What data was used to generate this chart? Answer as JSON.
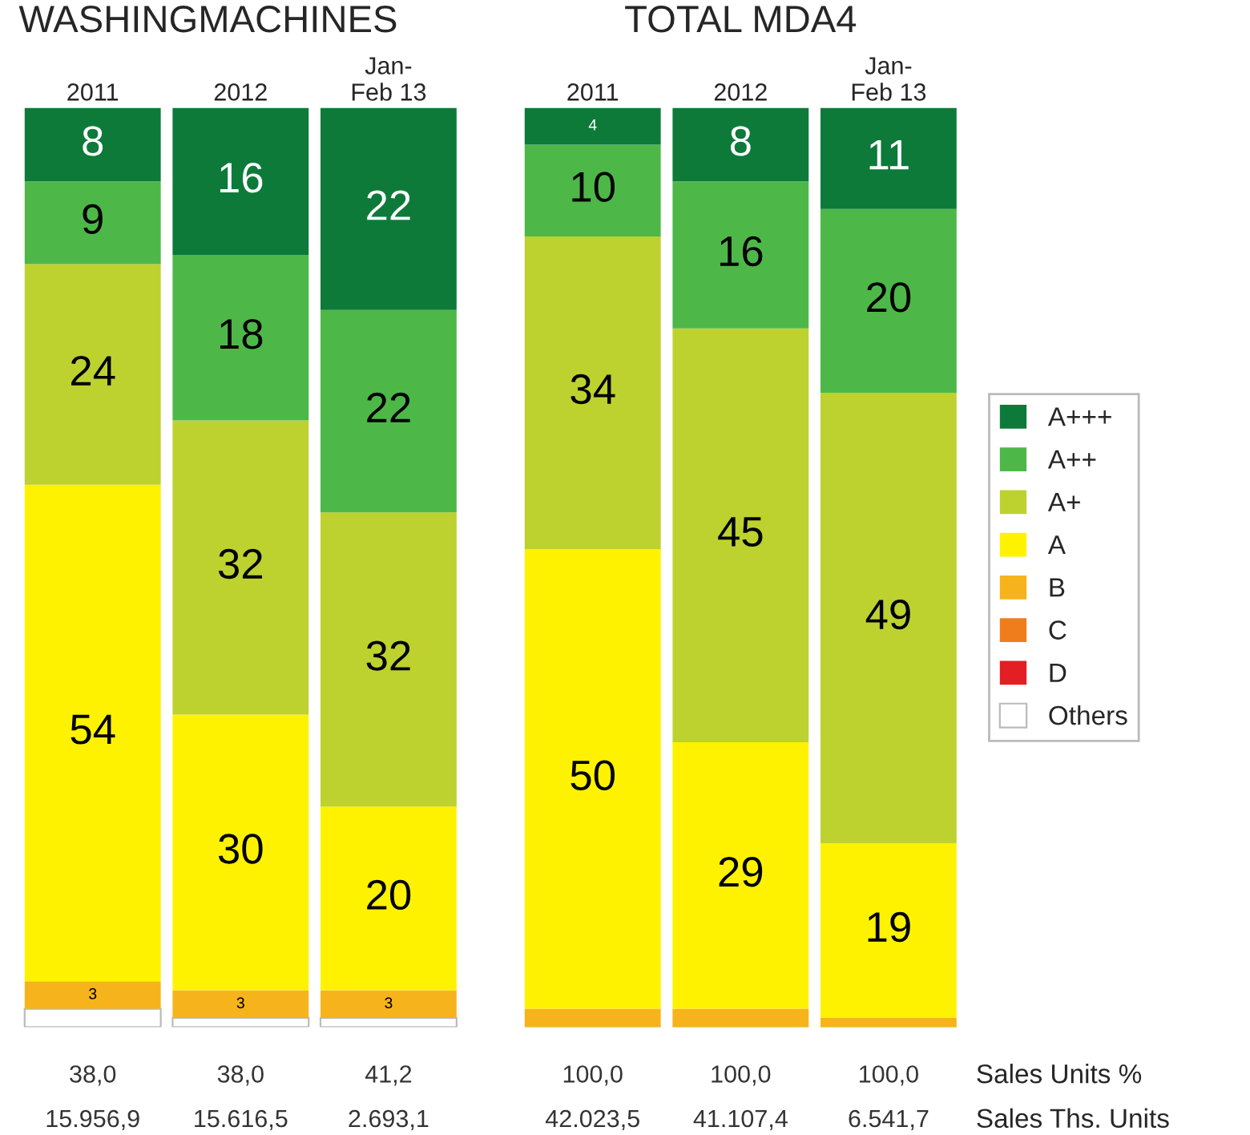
{
  "chart_data": [
    {
      "type": "bar",
      "stacked": true,
      "title": "WASHINGMACHINES",
      "categories": [
        "2011",
        "2012",
        "Jan-\nFeb 13"
      ],
      "ylim": [
        0,
        100
      ],
      "tick_labels": "x",
      "legend": false,
      "series": [
        {
          "color": "#ffffff",
          "values": [
            2,
            1,
            1
          ],
          "value_labels": [
            null,
            null,
            null
          ]
        },
        {
          "color": "#f7b31b",
          "values": [
            3,
            3,
            3
          ],
          "value_labels": [
            "3",
            "3",
            "3"
          ]
        },
        {
          "color": "#fff200",
          "values": [
            54,
            30,
            20
          ],
          "value_labels": [
            "54",
            "30",
            "20"
          ]
        },
        {
          "color": "#bdd22f",
          "values": [
            24,
            32,
            32
          ],
          "value_labels": [
            "24",
            "32",
            "32"
          ]
        },
        {
          "color": "#4db848",
          "values": [
            9,
            18,
            22
          ],
          "value_labels": [
            "9",
            "18",
            "22"
          ]
        },
        {
          "color": "#0d7a3a",
          "values": [
            8,
            16,
            22
          ],
          "value_labels": [
            "8",
            "16",
            "22"
          ]
        }
      ],
      "annotations": [
        "38,0",
        "38,0",
        "41,2",
        "15.956,9",
        "15.616,5",
        "2.693,1"
      ]
    },
    {
      "type": "bar",
      "stacked": true,
      "title": "TOTAL MDA4",
      "categories": [
        "2011",
        "2012",
        "Jan-\nFeb 13"
      ],
      "ylim": [
        0,
        100
      ],
      "tick_labels": "x",
      "legend": "right",
      "series": [
        {
          "name": "Others",
          "color": "#ffffff",
          "values": [
            0,
            0,
            0
          ],
          "value_labels": [
            null,
            null,
            null
          ]
        },
        {
          "name": "D",
          "color": "#e31e24",
          "values": [
            0,
            0,
            0
          ],
          "value_labels": [
            null,
            null,
            null
          ]
        },
        {
          "name": "C",
          "color": "#f07d1c",
          "values": [
            0,
            0,
            0
          ],
          "value_labels": [
            null,
            null,
            null
          ]
        },
        {
          "name": "B",
          "color": "#f7b31b",
          "values": [
            2,
            2,
            1
          ],
          "value_labels": [
            null,
            null,
            null
          ]
        },
        {
          "name": "A",
          "color": "#fff200",
          "values": [
            50,
            29,
            19
          ],
          "value_labels": [
            "50",
            "29",
            "19"
          ]
        },
        {
          "name": "A+",
          "color": "#bdd22f",
          "values": [
            34,
            45,
            49
          ],
          "value_labels": [
            "34",
            "45",
            "49"
          ]
        },
        {
          "name": "A++",
          "color": "#4db848",
          "values": [
            10,
            16,
            20
          ],
          "value_labels": [
            "10",
            "16",
            "20"
          ]
        },
        {
          "name": "A+++",
          "color": "#0d7a3a",
          "values": [
            4,
            8,
            11
          ],
          "value_labels": [
            "4",
            "8",
            "11"
          ]
        }
      ],
      "annotations": [
        "100,0",
        "100,0",
        "100,0",
        "42.023,5",
        "41.107,4",
        "6.541,7",
        "Sales Units %",
        "Sales Ths. Units"
      ]
    }
  ]
}
